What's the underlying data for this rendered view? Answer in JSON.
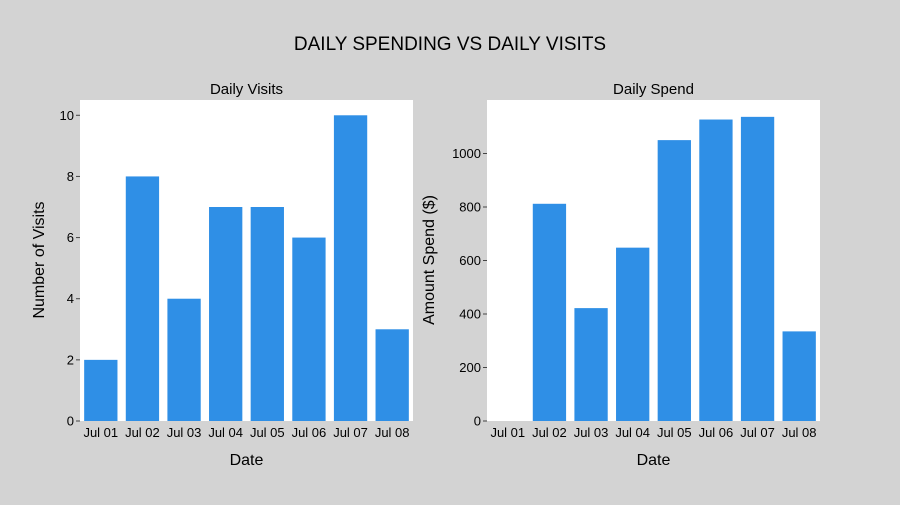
{
  "figure": {
    "title": "DAILY SPENDING VS DAILY VISITS",
    "background": "#d3d3d3",
    "plot_background": "#ffffff",
    "bar_color": "#2f8fe6"
  },
  "chart_data": [
    {
      "type": "bar",
      "title": "Daily Visits",
      "xlabel": "Date",
      "ylabel": "Number of Visits",
      "categories": [
        "Jul 01",
        "Jul 02",
        "Jul 03",
        "Jul 04",
        "Jul 05",
        "Jul 06",
        "Jul 07",
        "Jul 08"
      ],
      "values": [
        2,
        8,
        4,
        7,
        7,
        6,
        10,
        3
      ],
      "ylim": [
        0,
        10.5
      ],
      "yticks": [
        0,
        2,
        4,
        6,
        8,
        10
      ],
      "grid": false,
      "color": "#2f8fe6"
    },
    {
      "type": "bar",
      "title": "Daily Spend",
      "xlabel": "Date",
      "ylabel": "Amount Spend ($)",
      "categories": [
        "Jul 01",
        "Jul 02",
        "Jul 03",
        "Jul 04",
        "Jul 05",
        "Jul 06",
        "Jul 07",
        "Jul 08"
      ],
      "values": [
        0,
        812,
        422,
        648,
        1050,
        1127,
        1137,
        335
      ],
      "ylim": [
        0,
        1200
      ],
      "yticks": [
        0,
        200,
        400,
        600,
        800,
        1000
      ],
      "grid": false,
      "color": "#2f8fe6"
    }
  ]
}
